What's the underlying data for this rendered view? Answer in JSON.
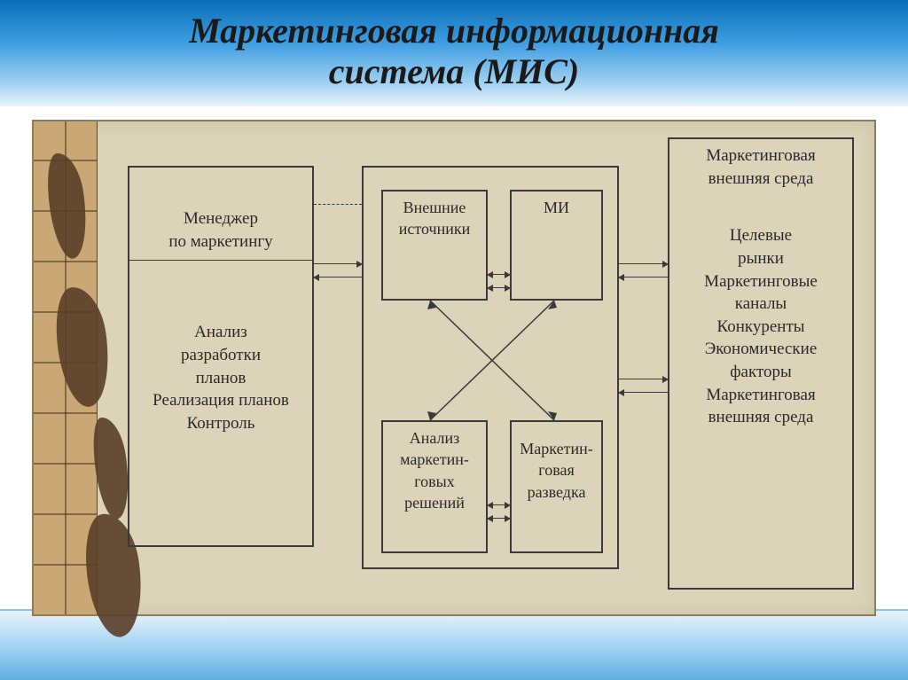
{
  "title": "Маркетинговая информационная\nсистема (МИС)",
  "title_fontsize": 40,
  "diagram": {
    "type": "flowchart",
    "background_color": "#dbd4b8",
    "border_color": "#8a7f5c",
    "text_color": "#2a2a2a",
    "box_border_color": "#3a3a3a",
    "label_fontsize": 19,
    "nodes": {
      "left_box": {
        "header": "Менеджер\nпо маркетингу",
        "body": "Анализ\nразработки\nпланов\nРеализация планов\nКонтроль"
      },
      "center_top_left": "Внешние\nисточники",
      "center_top_right": "МИ",
      "center_bot_left": "Анализ\nмаркетин-\nговых\nрешений",
      "center_bot_right": "Маркетин-\nговая\nразведка",
      "right_box": {
        "header": "Маркетинговая\nвнешняя среда",
        "body": "Целевые\nрынки\nМаркетинговые\nканалы\nКонкуренты\nЭкономические\nфакторы\nМаркетинговая\nвнешняя среда"
      }
    },
    "edges": [
      {
        "from": "left_box",
        "to": "center",
        "style": "bidirectional"
      },
      {
        "from": "center",
        "to": "right_box",
        "style": "bidirectional"
      },
      {
        "from": "center_top_left",
        "to": "center_top_right",
        "style": "bidirectional"
      },
      {
        "from": "center_bot_left",
        "to": "center_bot_right",
        "style": "bidirectional"
      },
      {
        "from": "center_top",
        "to": "center_bot",
        "style": "cross"
      },
      {
        "from": "left_box",
        "to": "center",
        "style": "dashed_top"
      }
    ]
  },
  "colors": {
    "sky_top": "#0a6fb8",
    "sky_bottom": "#e8f4fb",
    "water": "#5fb0e0",
    "map_strip": "#c9a876",
    "map_land": "#5a3f28"
  }
}
